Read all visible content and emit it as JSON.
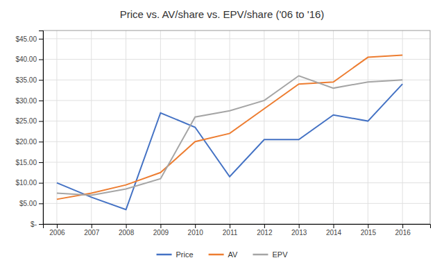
{
  "chart_data": {
    "type": "line",
    "title": "Price vs. AV/share vs. EPV/share ('06 to '16)",
    "x": [
      2006,
      2007,
      2008,
      2009,
      2010,
      2011,
      2012,
      2013,
      2014,
      2015,
      2016
    ],
    "series": [
      {
        "name": "Price",
        "color": "#4472C4",
        "values": [
          10.0,
          6.5,
          3.5,
          27.0,
          23.5,
          11.5,
          20.5,
          20.5,
          26.5,
          25.0,
          34.0
        ]
      },
      {
        "name": "AV",
        "color": "#ED7D31",
        "values": [
          6.0,
          7.5,
          9.5,
          12.5,
          20.0,
          22.0,
          28.0,
          34.0,
          34.5,
          40.5,
          41.0
        ]
      },
      {
        "name": "EPV",
        "color": "#A5A5A5",
        "values": [
          7.5,
          7.0,
          8.5,
          11.0,
          26.0,
          27.5,
          30.0,
          36.0,
          33.0,
          34.5,
          35.0
        ]
      }
    ],
    "xlim": [
      2005.6,
      2016.8
    ],
    "xticks": [
      2006,
      2007,
      2008,
      2009,
      2010,
      2011,
      2012,
      2013,
      2014,
      2015,
      2016
    ],
    "ylim": [
      0,
      47
    ],
    "yticks": [
      {
        "value": 0,
        "label": "$-"
      },
      {
        "value": 5,
        "label": "$5.00"
      },
      {
        "value": 10,
        "label": "$10.00"
      },
      {
        "value": 15,
        "label": "$15.00"
      },
      {
        "value": 20,
        "label": "$20.00"
      },
      {
        "value": 25,
        "label": "$25.00"
      },
      {
        "value": 30,
        "label": "$30.00"
      },
      {
        "value": 35,
        "label": "$35.00"
      },
      {
        "value": 40,
        "label": "$40.00"
      },
      {
        "value": 45,
        "label": "$45.00"
      }
    ],
    "grid": true,
    "legend": "bottom"
  }
}
